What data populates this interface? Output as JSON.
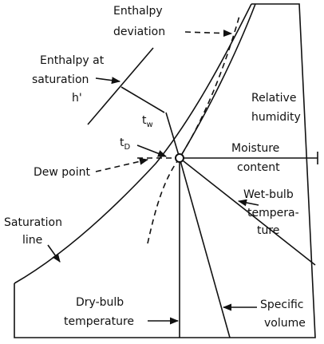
{
  "labels": {
    "enthalpy_deviation": [
      "Enthalpy",
      "deviation"
    ],
    "enthalpy_at_saturation": [
      "Enthalpy at",
      "saturation",
      "h'"
    ],
    "relative_humidity": [
      "Relative",
      "humidity"
    ],
    "t_w": {
      "main": "t",
      "sub": "w"
    },
    "t_d": {
      "main": "t",
      "sub": "D"
    },
    "moisture_content": [
      "Moisture",
      "content"
    ],
    "dew_point": [
      "Dew point"
    ],
    "saturation_line": [
      "Saturation",
      "line"
    ],
    "wet_bulb_temperature": [
      "Wet-bulb",
      "tempera-",
      "ture"
    ],
    "dry_bulb_temperature": [
      "Dry-bulb",
      "temperature"
    ],
    "specific_volume": [
      "Specific",
      "volume"
    ]
  }
}
